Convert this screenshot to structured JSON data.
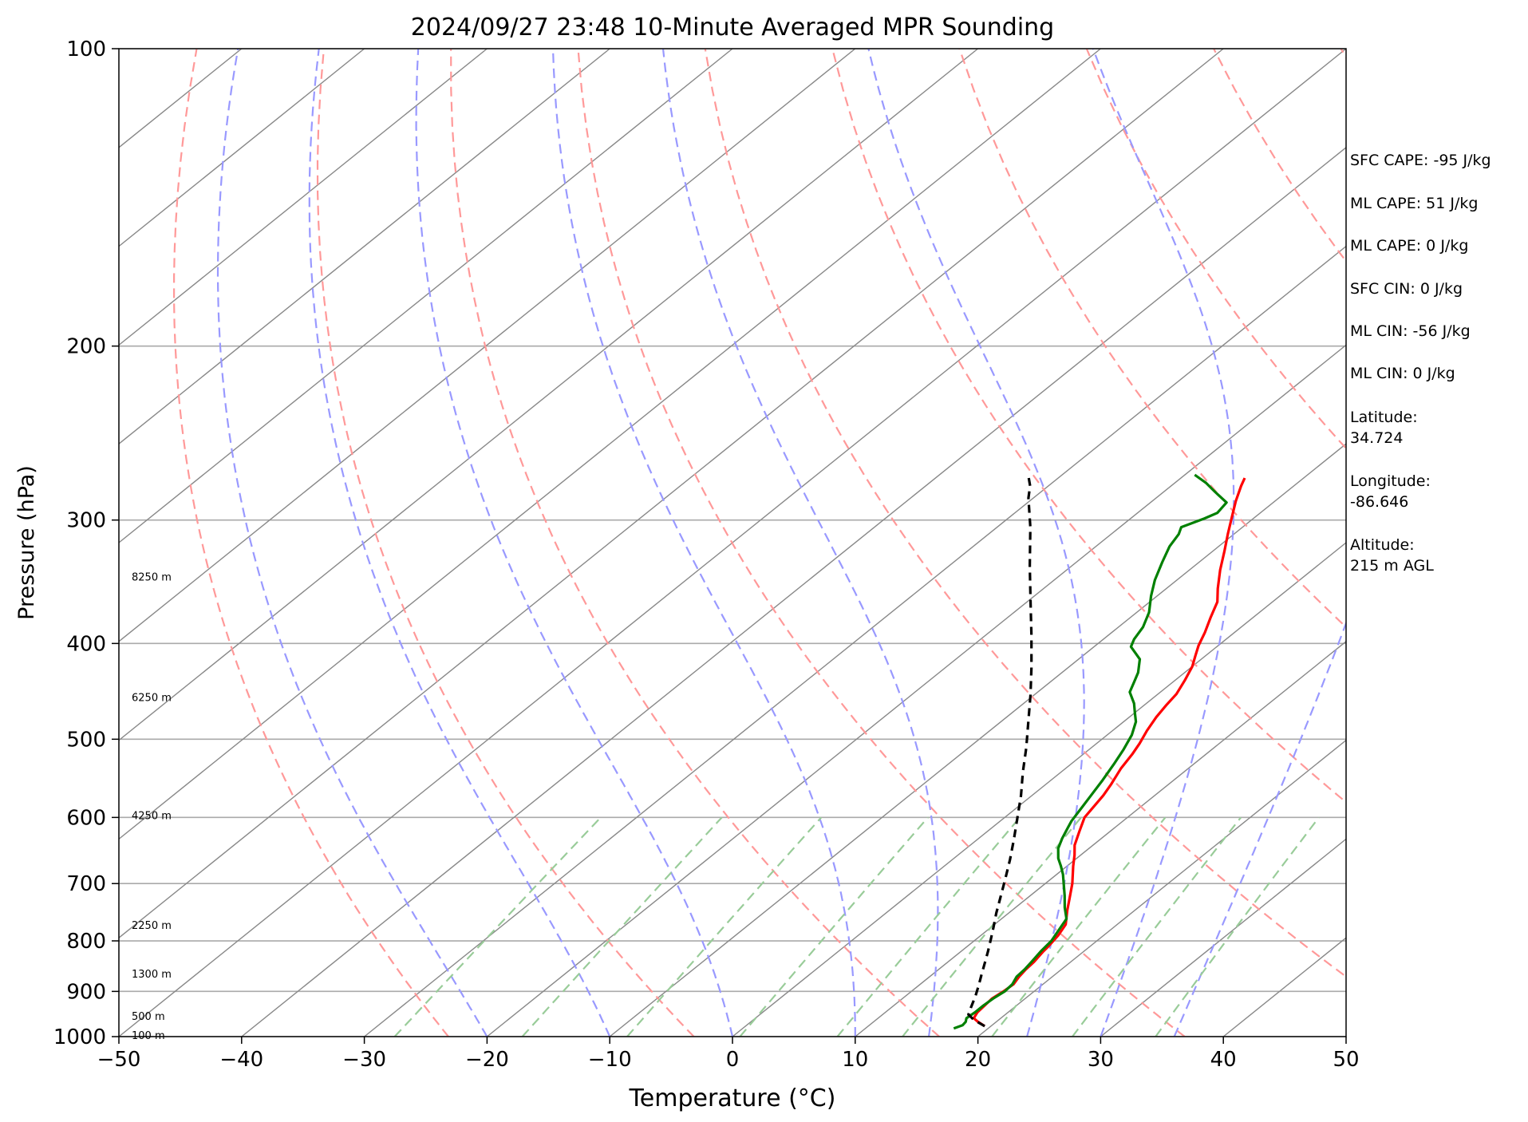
{
  "chart_data": {
    "type": "line",
    "title": "2024/09/27 23:48 10-Minute Averaged MPR Sounding",
    "xlabel": "Temperature (°C)",
    "ylabel": "Pressure (hPa)",
    "xlim": [
      -50,
      50
    ],
    "ylim": [
      1000,
      100
    ],
    "y_scale": "log",
    "x_ticks": [
      -50,
      -40,
      -30,
      -20,
      -10,
      0,
      10,
      20,
      30,
      40,
      50
    ],
    "x_tick_labels": [
      "−50",
      "−40",
      "−30",
      "−20",
      "−10",
      "0",
      "10",
      "20",
      "30",
      "40",
      "50"
    ],
    "y_ticks": [
      1000,
      900,
      800,
      700,
      600,
      500,
      400,
      300,
      200,
      100
    ],
    "y_tick_labels": [
      "1000",
      "900",
      "800",
      "700",
      "600",
      "500",
      "400",
      "300",
      "200",
      "100"
    ],
    "grid": true,
    "height_labels": [
      {
        "pressure": 998,
        "label": "100 m"
      },
      {
        "pressure": 955,
        "label": "500 m"
      },
      {
        "pressure": 865,
        "label": "1300 m"
      },
      {
        "pressure": 772,
        "label": "2250 m"
      },
      {
        "pressure": 598,
        "label": "4250 m"
      },
      {
        "pressure": 454,
        "label": "6250 m"
      },
      {
        "pressure": 343,
        "label": "8250 m"
      }
    ],
    "series": [
      {
        "color": "#ff0000",
        "points": [
          [
            19.5,
            976
          ],
          [
            18.5,
            966
          ],
          [
            17.8,
            958
          ],
          [
            17.5,
            945
          ],
          [
            17.4,
            930
          ],
          [
            17.3,
            915
          ],
          [
            17.5,
            900
          ],
          [
            17.6,
            885
          ],
          [
            17.3,
            870
          ],
          [
            17.1,
            855
          ],
          [
            17.0,
            840
          ],
          [
            16.7,
            820
          ],
          [
            16.6,
            810
          ],
          [
            16.3,
            790
          ],
          [
            15.8,
            770
          ],
          [
            14.5,
            745
          ],
          [
            13.5,
            725
          ],
          [
            12.2,
            700
          ],
          [
            10.5,
            672
          ],
          [
            9.5,
            655
          ],
          [
            8.5,
            640
          ],
          [
            7.5,
            620
          ],
          [
            6.5,
            600
          ],
          [
            5.8,
            570
          ],
          [
            5.3,
            555
          ],
          [
            4.5,
            535
          ],
          [
            4.0,
            518
          ],
          [
            3.5,
            505
          ],
          [
            2.8,
            490
          ],
          [
            2.2,
            475
          ],
          [
            1.8,
            462
          ],
          [
            1.5,
            450
          ],
          [
            0.8,
            436
          ],
          [
            0.0,
            422
          ],
          [
            -0.8,
            412
          ],
          [
            -1.6,
            402
          ],
          [
            -2.4,
            390
          ],
          [
            -3.5,
            376
          ],
          [
            -4.5,
            363
          ],
          [
            -5.8,
            352
          ],
          [
            -7.5,
            337
          ],
          [
            -9.0,
            323
          ],
          [
            -10.5,
            310
          ],
          [
            -12.0,
            297
          ],
          [
            -13.2,
            287
          ],
          [
            -14.3,
            277
          ],
          [
            -14.8,
            272
          ]
        ]
      },
      {
        "color": "#008000",
        "points": [
          [
            17.2,
            981
          ],
          [
            17.6,
            974
          ],
          [
            17.5,
            966
          ],
          [
            17.2,
            958
          ],
          [
            17.3,
            945
          ],
          [
            17.3,
            930
          ],
          [
            17.4,
            915
          ],
          [
            17.6,
            900
          ],
          [
            17.5,
            885
          ],
          [
            17.1,
            870
          ],
          [
            17.0,
            855
          ],
          [
            16.8,
            840
          ],
          [
            16.5,
            820
          ],
          [
            16.3,
            800
          ],
          [
            15.8,
            780
          ],
          [
            15.3,
            760
          ],
          [
            14.0,
            740
          ],
          [
            12.8,
            720
          ],
          [
            11.5,
            700
          ],
          [
            10.5,
            685
          ],
          [
            9.5,
            672
          ],
          [
            8.5,
            660
          ],
          [
            7.5,
            645
          ],
          [
            6.8,
            630
          ],
          [
            6.2,
            615
          ],
          [
            5.8,
            605
          ],
          [
            5.3,
            587
          ],
          [
            4.8,
            570
          ],
          [
            4.2,
            550
          ],
          [
            3.5,
            530
          ],
          [
            2.8,
            512
          ],
          [
            2.0,
            495
          ],
          [
            1.0,
            480
          ],
          [
            0.0,
            470
          ],
          [
            -1.0,
            460
          ],
          [
            -2.5,
            448
          ],
          [
            -3.2,
            437
          ],
          [
            -3.8,
            428
          ],
          [
            -5.0,
            415
          ],
          [
            -7.0,
            403
          ],
          [
            -7.5,
            396
          ],
          [
            -8.0,
            385
          ],
          [
            -9.0,
            372
          ],
          [
            -10.5,
            358
          ],
          [
            -11.8,
            345
          ],
          [
            -13.0,
            331
          ],
          [
            -14.0,
            319
          ],
          [
            -14.5,
            310
          ],
          [
            -15.0,
            305
          ],
          [
            -14.0,
            299
          ],
          [
            -13.5,
            295
          ],
          [
            -13.8,
            288
          ],
          [
            -15.8,
            281
          ],
          [
            -17.5,
            275
          ],
          [
            -19.2,
            270
          ]
        ]
      },
      {
        "color": "#000000",
        "dash": "dashed",
        "points": [
          [
            19.5,
            976
          ],
          [
            18.0,
            962
          ],
          [
            17.0,
            950
          ],
          [
            16.5,
            935
          ],
          [
            15.7,
            910
          ],
          [
            14.9,
            888
          ],
          [
            14.0,
            865
          ],
          [
            13.1,
            842
          ],
          [
            12.2,
            820
          ],
          [
            11.2,
            797
          ],
          [
            10.2,
            775
          ],
          [
            9.0,
            750
          ],
          [
            7.7,
            722
          ],
          [
            6.3,
            693
          ],
          [
            4.7,
            662
          ],
          [
            3.0,
            632
          ],
          [
            1.1,
            601
          ],
          [
            -0.9,
            570
          ],
          [
            -3.1,
            540
          ],
          [
            -5.3,
            510
          ],
          [
            -7.6,
            482
          ],
          [
            -10.3,
            451
          ],
          [
            -13.0,
            423
          ],
          [
            -16.2,
            393
          ],
          [
            -19.6,
            364
          ],
          [
            -23.4,
            334
          ],
          [
            -27.3,
            305
          ],
          [
            -30.4,
            285
          ],
          [
            -31.5,
            277
          ],
          [
            -32.4,
            272
          ]
        ]
      }
    ],
    "background_lines": {
      "dry_adiabats_theta_K": [
        250,
        270,
        290,
        310,
        330,
        350,
        370,
        390,
        410,
        430,
        450,
        470,
        490
      ],
      "moist_adiabats_start_C": [
        -20,
        -10,
        0,
        10,
        16,
        24,
        30,
        36
      ],
      "mixing_ratio_g_per_kg": [
        0.4,
        1,
        2,
        4,
        7,
        10,
        16,
        24,
        36
      ]
    }
  },
  "annotations": [
    {
      "label": "SFC CAPE: -95 J/kg"
    },
    {
      "label": "ML CAPE: 51 J/kg"
    },
    {
      "label": "ML CAPE: 0 J/kg"
    },
    {
      "label": "SFC CIN: 0 J/kg"
    },
    {
      "label": "ML CIN: -56 J/kg"
    },
    {
      "label": "ML CIN: 0 J/kg"
    },
    {
      "label": "Latitude:\n34.724"
    },
    {
      "label": "Longitude:\n-86.646"
    },
    {
      "label": "Altitude:\n215 m AGL"
    }
  ],
  "colors": {
    "temperature": "#ff0000",
    "dewpoint": "#008000",
    "parcel": "#000000",
    "dry_adiabat": "#ff9999",
    "moist_adiabat": "#9999ff",
    "mixing_ratio": "#99cc99",
    "isotherm": "#888888",
    "isobar": "#aaaaaa"
  }
}
